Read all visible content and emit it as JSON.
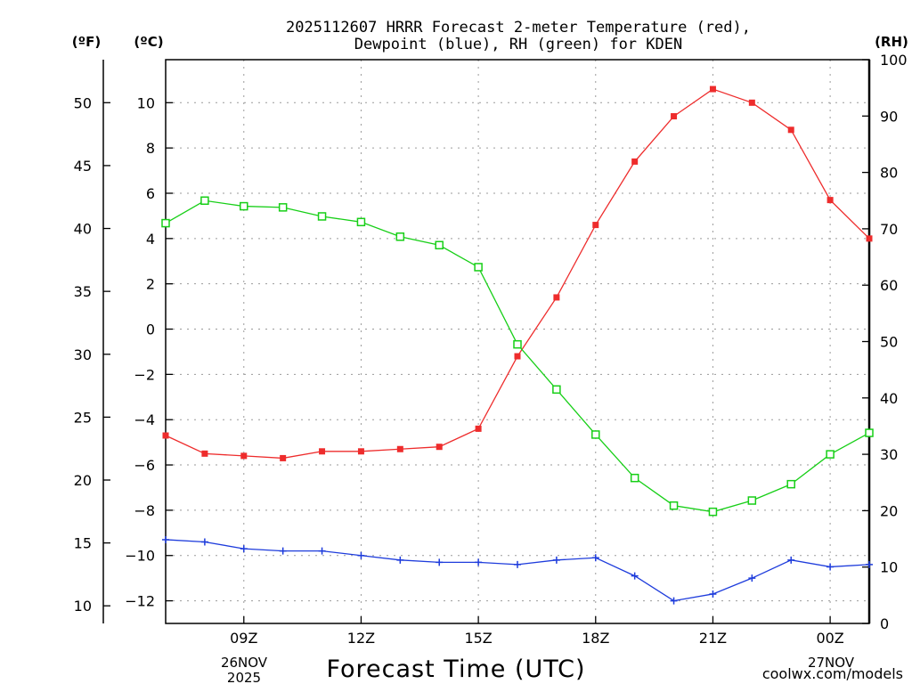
{
  "title_line1": "2025112607 HRRR Forecast 2-meter Temperature (red),",
  "title_line2": "Dewpoint (blue), RH (green) for KDEN",
  "unit_f": "(ºF)",
  "unit_c": "(ºC)",
  "unit_rh": "(RH)",
  "xlabel": "Forecast Time (UTC)",
  "watermark": "coolwx.com/models",
  "date_start": [
    "26NOV",
    "2025"
  ],
  "date_end": [
    "27NOV"
  ],
  "colors": {
    "temp": "#ee2c2c",
    "dew": "#1e3cdc",
    "rh": "#17cf17",
    "grid": "#9a9a9a",
    "watermark": "#d63a4a"
  },
  "chart_data": {
    "type": "line",
    "title": "2025112607 HRRR Forecast 2-meter Temperature (red), Dewpoint (blue), RH (green) for KDEN",
    "xlabel": "Forecast Time (UTC)",
    "x_hours": [
      7,
      8,
      9,
      10,
      11,
      12,
      13,
      14,
      15,
      16,
      17,
      18,
      19,
      20,
      21,
      22,
      23,
      24,
      25
    ],
    "x_range": [
      7,
      25
    ],
    "x_ticks": [
      {
        "hour": 9,
        "label": "09Z"
      },
      {
        "hour": 12,
        "label": "12Z"
      },
      {
        "hour": 15,
        "label": "15Z"
      },
      {
        "hour": 18,
        "label": "18Z"
      },
      {
        "hour": 21,
        "label": "21Z"
      },
      {
        "hour": 24,
        "label": "00Z"
      }
    ],
    "y_left_c": {
      "label": "(ºC)",
      "range": [
        -13,
        11.9
      ],
      "ticks": [
        10,
        8,
        6,
        4,
        2,
        0,
        -2,
        -4,
        -6,
        -8,
        -10,
        -12
      ]
    },
    "y_left_f": {
      "label": "(ºF)",
      "ticks": [
        50,
        45,
        40,
        35,
        30,
        25,
        20,
        15,
        10
      ]
    },
    "y_right_rh": {
      "label": "(RH)",
      "range": [
        0,
        100
      ],
      "ticks": [
        100,
        90,
        80,
        70,
        60,
        50,
        40,
        30,
        20,
        10,
        0
      ]
    },
    "series": [
      {
        "name": "2-meter Temperature",
        "unit": "C",
        "axis": "left",
        "marker": "filled-square",
        "values": [
          -4.7,
          -5.5,
          -5.6,
          -5.7,
          -5.4,
          -5.4,
          -5.3,
          -5.2,
          -4.4,
          -1.2,
          1.4,
          4.6,
          7.4,
          9.4,
          10.6,
          10.0,
          8.8,
          5.7,
          4.0
        ]
      },
      {
        "name": "Dewpoint",
        "unit": "C",
        "axis": "left",
        "marker": "plus",
        "values": [
          -9.3,
          -9.4,
          -9.7,
          -9.8,
          -9.8,
          -10.0,
          -10.2,
          -10.3,
          -10.3,
          -10.4,
          -10.2,
          -10.1,
          -10.9,
          -12.0,
          -11.7,
          -11.0,
          -10.2,
          -10.5,
          -10.4
        ]
      },
      {
        "name": "RH",
        "unit": "%",
        "axis": "right",
        "marker": "open-square",
        "values": [
          71,
          75,
          74,
          73.8,
          72.2,
          71.2,
          68.6,
          67.1,
          63.2,
          49.5,
          41.5,
          33.5,
          25.8,
          20.9,
          19.8,
          21.8,
          24.7,
          30,
          33.8
        ]
      }
    ]
  }
}
